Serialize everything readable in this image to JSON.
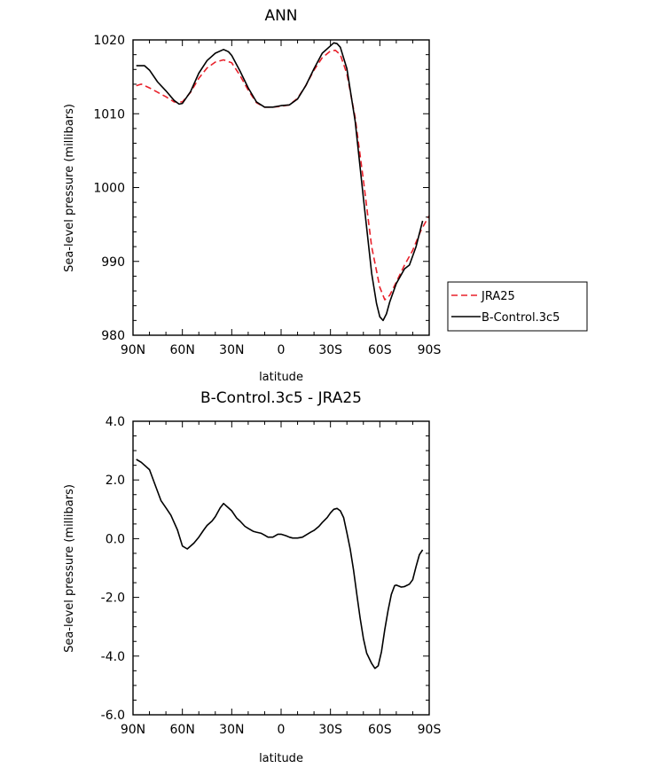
{
  "chart_data": [
    {
      "type": "line",
      "title": "ANN",
      "xlabel": "latitude",
      "ylabel": "Sea-level pressure (millibars)",
      "x_tick_labels": [
        "90N",
        "60N",
        "30N",
        "0",
        "30S",
        "60S",
        "90S"
      ],
      "x_ticks": [
        -90,
        -60,
        -30,
        0,
        30,
        60,
        90
      ],
      "y_tick_labels": [
        "980",
        "990",
        "1000",
        "1010",
        "1020"
      ],
      "y_ticks": [
        980,
        990,
        1000,
        1010,
        1020
      ],
      "xlim": [
        -90,
        90
      ],
      "ylim": [
        980,
        1020
      ],
      "legend": {
        "position": "right-outside",
        "entries": [
          "JRA25",
          "B-Control.3c5"
        ]
      },
      "series": [
        {
          "name": "JRA25",
          "color": "#e8202a",
          "dash": "dashed",
          "x": [
            -88,
            -85,
            -80,
            -75,
            -70,
            -65,
            -60,
            -55,
            -50,
            -45,
            -40,
            -35,
            -30,
            -25,
            -20,
            -15,
            -10,
            -5,
            0,
            5,
            10,
            15,
            20,
            25,
            30,
            33,
            36,
            40,
            45,
            50,
            55,
            60,
            63,
            66,
            70,
            75,
            80,
            85,
            90
          ],
          "y": [
            1013.8,
            1014.0,
            1013.5,
            1012.9,
            1012.3,
            1011.6,
            1011.6,
            1012.9,
            1014.8,
            1016.2,
            1017.0,
            1017.3,
            1016.9,
            1015.2,
            1013.2,
            1011.5,
            1010.9,
            1010.9,
            1011.0,
            1011.2,
            1012.1,
            1013.8,
            1015.9,
            1017.6,
            1018.5,
            1018.6,
            1018.0,
            1015.4,
            1009.5,
            1001.0,
            992.0,
            986.5,
            984.8,
            985.4,
            987.2,
            989.5,
            991.5,
            994.2,
            996.2
          ]
        },
        {
          "name": "B-Control.3c5",
          "color": "#000000",
          "dash": "solid",
          "x": [
            -88,
            -83,
            -80,
            -75,
            -70,
            -65,
            -62,
            -60,
            -55,
            -50,
            -45,
            -40,
            -35,
            -32,
            -30,
            -25,
            -20,
            -15,
            -10,
            -5,
            0,
            5,
            10,
            15,
            20,
            25,
            30,
            32,
            34,
            36,
            40,
            45,
            50,
            55,
            58,
            60,
            62,
            64,
            66,
            70,
            75,
            78,
            82,
            86
          ],
          "y": [
            1016.5,
            1016.5,
            1015.9,
            1014.3,
            1013.1,
            1011.8,
            1011.3,
            1011.4,
            1013.0,
            1015.5,
            1017.2,
            1018.2,
            1018.7,
            1018.4,
            1017.9,
            1015.8,
            1013.5,
            1011.6,
            1010.9,
            1010.9,
            1011.1,
            1011.2,
            1012.0,
            1013.8,
            1016.1,
            1018.2,
            1019.2,
            1019.6,
            1019.5,
            1019.0,
            1016.1,
            1009.0,
            998.6,
            988.4,
            984.3,
            982.5,
            982.0,
            982.9,
            984.5,
            987.0,
            989.0,
            989.5,
            992.0,
            995.5
          ]
        }
      ]
    },
    {
      "type": "line",
      "title": "B-Control.3c5 - JRA25",
      "xlabel": "latitude",
      "ylabel": "Sea-level pressure (millibars)",
      "x_tick_labels": [
        "90N",
        "60N",
        "30N",
        "0",
        "30S",
        "60S",
        "90S"
      ],
      "x_ticks": [
        -90,
        -60,
        -30,
        0,
        30,
        60,
        90
      ],
      "y_tick_labels": [
        "-6.0",
        "-4.0",
        "-2.0",
        "0.0",
        "2.0",
        "4.0"
      ],
      "y_ticks": [
        -6,
        -4,
        -2,
        0,
        2,
        4
      ],
      "xlim": [
        -90,
        90
      ],
      "ylim": [
        -6,
        4
      ],
      "series": [
        {
          "name": "B-Control.3c5 - JRA25",
          "color": "#000000",
          "dash": "solid",
          "x": [
            -88,
            -85,
            -80,
            -77,
            -73,
            -70,
            -67,
            -63,
            -60,
            -57,
            -53,
            -50,
            -47,
            -45,
            -42,
            -40,
            -37,
            -35,
            -32,
            -30,
            -27,
            -25,
            -22,
            -20,
            -17,
            -15,
            -12,
            -10,
            -8,
            -5,
            -2,
            0,
            3,
            5,
            7,
            10,
            13,
            15,
            18,
            20,
            23,
            25,
            28,
            30,
            32,
            34,
            36,
            38,
            40,
            42,
            44,
            46,
            48,
            50,
            52,
            55,
            57,
            59,
            61,
            63,
            65,
            67,
            69,
            70,
            73,
            75,
            78,
            80,
            82,
            84,
            86
          ],
          "y": [
            2.7,
            2.6,
            2.35,
            1.9,
            1.3,
            1.05,
            0.8,
            0.3,
            -0.25,
            -0.35,
            -0.15,
            0.05,
            0.3,
            0.45,
            0.6,
            0.75,
            1.05,
            1.2,
            1.05,
            0.95,
            0.7,
            0.6,
            0.42,
            0.35,
            0.25,
            0.22,
            0.18,
            0.12,
            0.05,
            0.05,
            0.15,
            0.15,
            0.1,
            0.05,
            0.02,
            0.02,
            0.05,
            0.12,
            0.22,
            0.28,
            0.42,
            0.55,
            0.72,
            0.88,
            1.0,
            1.03,
            0.95,
            0.72,
            0.2,
            -0.35,
            -1.05,
            -1.9,
            -2.7,
            -3.4,
            -3.9,
            -4.25,
            -4.42,
            -4.33,
            -3.85,
            -3.1,
            -2.45,
            -1.9,
            -1.6,
            -1.58,
            -1.65,
            -1.63,
            -1.55,
            -1.4,
            -0.95,
            -0.55,
            -0.38
          ]
        }
      ]
    }
  ]
}
